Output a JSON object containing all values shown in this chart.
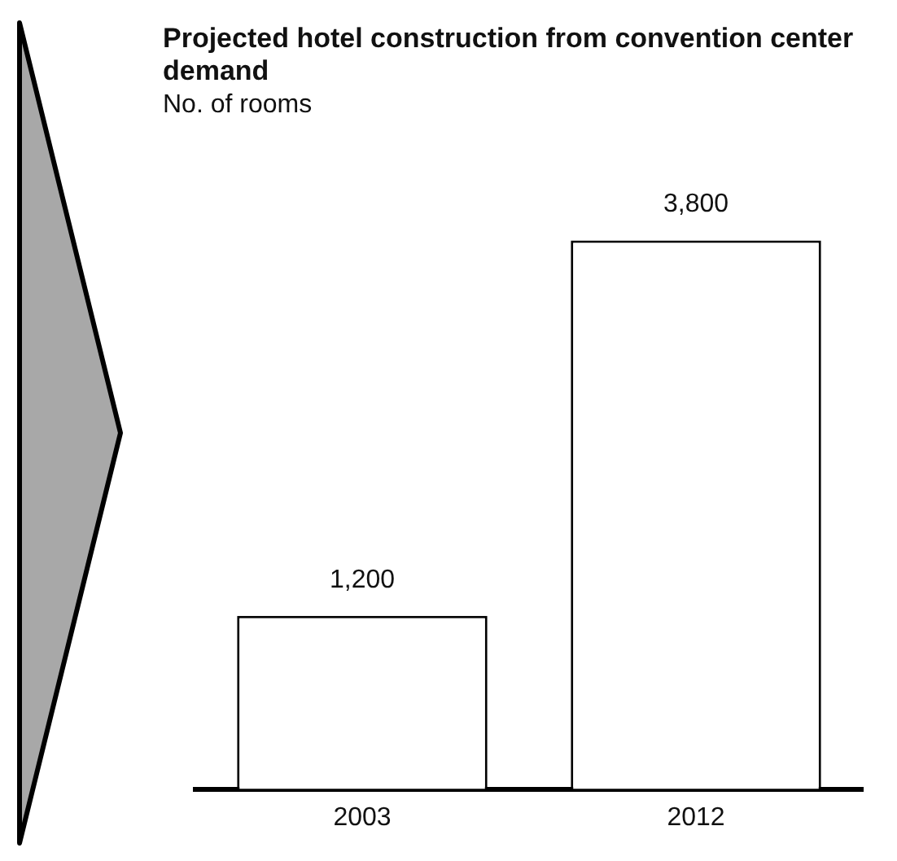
{
  "chart_data": {
    "type": "bar",
    "title": "Projected hotel construction from convention center demand",
    "subtitle": "No. of rooms",
    "categories": [
      "2003",
      "2012"
    ],
    "values": [
      1200,
      3800
    ],
    "value_labels": [
      "1,200",
      "3,800"
    ],
    "color": "#ffffff",
    "grid": false,
    "legend": false
  }
}
